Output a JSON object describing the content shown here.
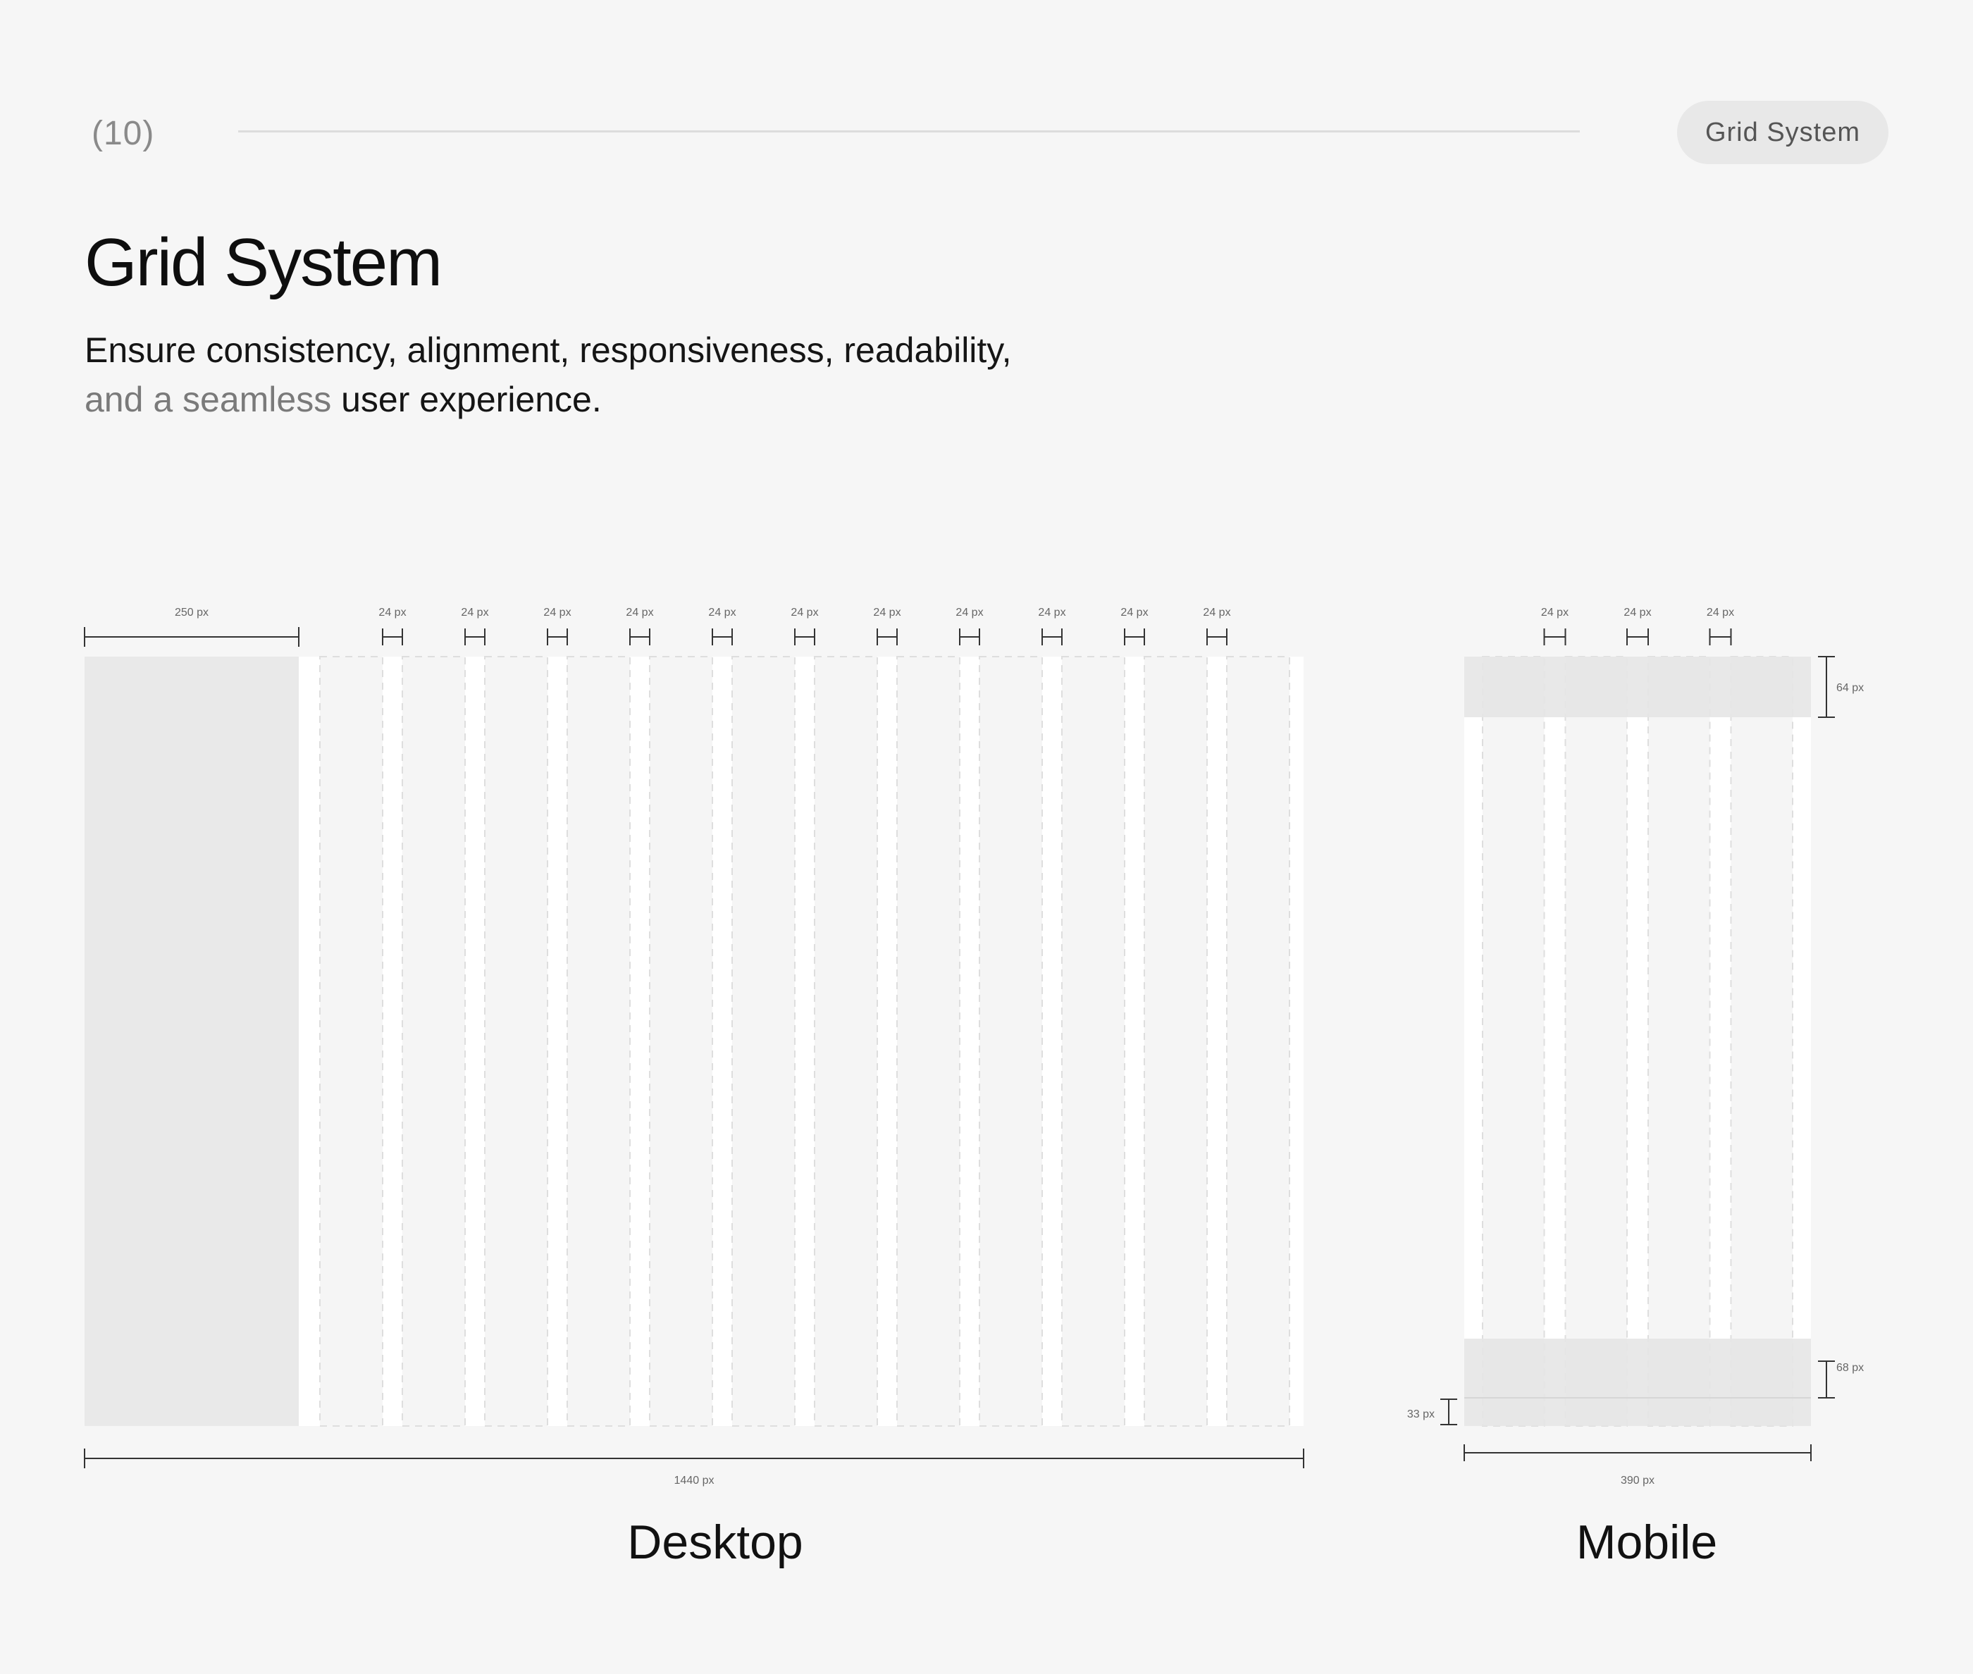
{
  "header": {
    "page_number": "(10)",
    "tag": "Grid System"
  },
  "title": "Grid System",
  "subtitle": {
    "line1": "Ensure consistency, alignment, responsiveness, readability,",
    "line2_muted": "and a seamless",
    "line2_rest": " user experience."
  },
  "desktop": {
    "caption": "Desktop",
    "width_label": "1440 px",
    "sidebar_label": "250 px",
    "gutter_label": "24 px",
    "gutter_count": 11
  },
  "mobile": {
    "caption": "Mobile",
    "width_label": "390 px",
    "gutter_label": "24 px",
    "gutter_count": 3,
    "top_bar_label": "64 px",
    "bottom_bar_label": "68 px",
    "bottom_offset_label": "33 px"
  },
  "colors": {
    "background": "#f6f6f6",
    "frame": "#ffffff",
    "sidebar_fill": "#e9e9e9",
    "bar_fill": "#e6e6e6",
    "line": "#333333"
  }
}
